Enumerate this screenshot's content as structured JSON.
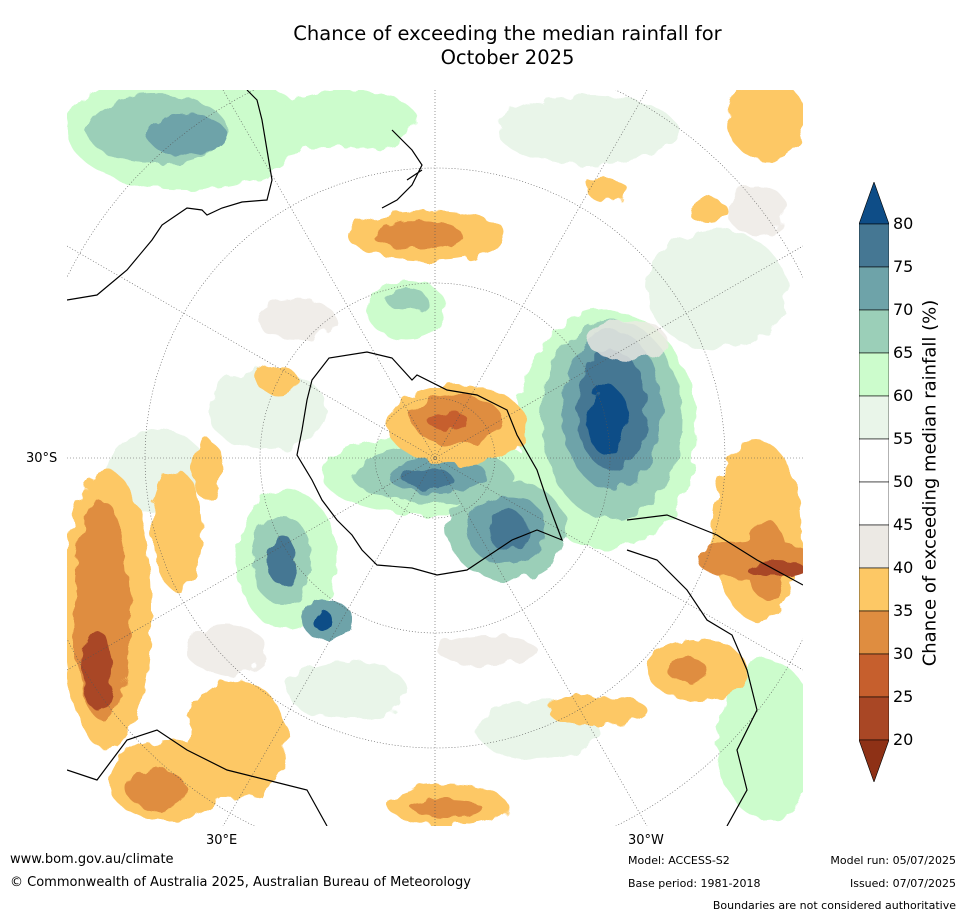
{
  "title_line1": "Chance of exceeding the median rainfall for",
  "title_line2": "October 2025",
  "lat_label": "30°S",
  "lon_labels": {
    "east": "30°E",
    "west": "30°W"
  },
  "colorbar": {
    "title": "Chance of exceeding median rainfall (%)",
    "ticks": [
      "20",
      "25",
      "30",
      "35",
      "40",
      "45",
      "50",
      "55",
      "60",
      "65",
      "70",
      "75",
      "80"
    ],
    "bins": [
      {
        "range": "<20",
        "color": "#8e3116"
      },
      {
        "range": "20-25",
        "color": "#a94725"
      },
      {
        "range": "25-30",
        "color": "#c65f2d"
      },
      {
        "range": "30-35",
        "color": "#df8d40"
      },
      {
        "range": "35-40",
        "color": "#fdc865"
      },
      {
        "range": "40-45",
        "color": "#ece9e4"
      },
      {
        "range": "45-50",
        "color": "#ffffff"
      },
      {
        "range": "50-55",
        "color": "#ffffff"
      },
      {
        "range": "55-60",
        "color": "#e9f5e9"
      },
      {
        "range": "60-65",
        "color": "#ccfccc"
      },
      {
        "range": "65-70",
        "color": "#9bcfb8"
      },
      {
        "range": "70-75",
        "color": "#6ea3a9"
      },
      {
        "range": "75-80",
        "color": "#457793"
      },
      {
        "range": ">80",
        "color": "#0e4d87"
      }
    ]
  },
  "footer": {
    "website": "www.bom.gov.au/climate",
    "copyright": "© Commonwealth of Australia 2025, Australian Bureau of Meteorology",
    "model": "Model: ACCESS-S2",
    "base_period": "Base period: 1981-2018",
    "model_run": "Model run: 05/07/2025",
    "issued": "Issued: 07/07/2025",
    "disclaimer": "Boundaries are not considered authoritative"
  }
}
